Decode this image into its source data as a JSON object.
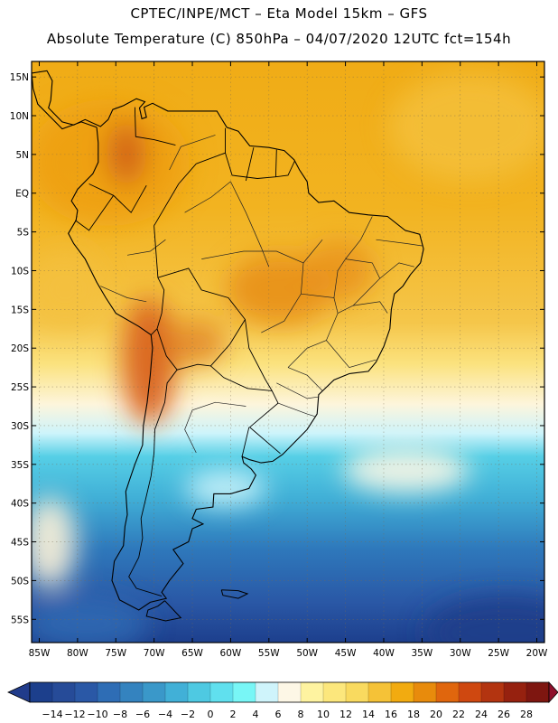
{
  "title": {
    "line1": "CPTEC/INPE/MCT –  Eta Model 15km – GFS",
    "line2": "Absolute Temperature (C) 850hPa – 04/07/2020 12UTC fct=154h"
  },
  "map": {
    "lon_range": [
      -86,
      -19
    ],
    "lat_range": [
      -58,
      17
    ],
    "lat_labels": [
      {
        "lat": 15,
        "text": "15N"
      },
      {
        "lat": 10,
        "text": "10N"
      },
      {
        "lat": 5,
        "text": "5N"
      },
      {
        "lat": 0,
        "text": "EQ"
      },
      {
        "lat": -5,
        "text": "5S"
      },
      {
        "lat": -10,
        "text": "10S"
      },
      {
        "lat": -15,
        "text": "15S"
      },
      {
        "lat": -20,
        "text": "20S"
      },
      {
        "lat": -25,
        "text": "25S"
      },
      {
        "lat": -30,
        "text": "30S"
      },
      {
        "lat": -35,
        "text": "35S"
      },
      {
        "lat": -40,
        "text": "40S"
      },
      {
        "lat": -45,
        "text": "45S"
      },
      {
        "lat": -50,
        "text": "50S"
      },
      {
        "lat": -55,
        "text": "55S"
      }
    ],
    "lon_labels": [
      {
        "lon": -85,
        "text": "85W"
      },
      {
        "lon": -80,
        "text": "80W"
      },
      {
        "lon": -75,
        "text": "75W"
      },
      {
        "lon": -70,
        "text": "70W"
      },
      {
        "lon": -65,
        "text": "65W"
      },
      {
        "lon": -60,
        "text": "60W"
      },
      {
        "lon": -55,
        "text": "55W"
      },
      {
        "lon": -50,
        "text": "50W"
      },
      {
        "lon": -45,
        "text": "45W"
      },
      {
        "lon": -40,
        "text": "40W"
      },
      {
        "lon": -35,
        "text": "35W"
      },
      {
        "lon": -30,
        "text": "30W"
      },
      {
        "lon": -25,
        "text": "25W"
      },
      {
        "lon": -20,
        "text": "20W"
      }
    ],
    "coastline": [
      [
        -77.5,
        8.5
      ],
      [
        -79.5,
        9.2
      ],
      [
        -82,
        8.3
      ],
      [
        -83.5,
        9.8
      ],
      [
        -85.2,
        11.5
      ],
      [
        -85.8,
        13.5
      ],
      [
        -86,
        15.5
      ],
      [
        -84,
        15.8
      ],
      [
        -83.3,
        14.5
      ],
      [
        -83.5,
        12
      ],
      [
        -83.8,
        11
      ],
      [
        -82,
        9.2
      ],
      [
        -80.5,
        8.8
      ],
      [
        -79,
        9.5
      ],
      [
        -77,
        8.6
      ],
      [
        -76,
        9.5
      ],
      [
        -75.4,
        10.8
      ],
      [
        -74,
        11.3
      ],
      [
        -72.3,
        12.2
      ],
      [
        -71.2,
        11.8
      ],
      [
        -71.9,
        11.0
      ],
      [
        -71.6,
        9.6
      ],
      [
        -71.0,
        9.8
      ],
      [
        -71.3,
        11.1
      ],
      [
        -70.2,
        11.6
      ],
      [
        -68.2,
        10.6
      ],
      [
        -66,
        10.6
      ],
      [
        -64,
        10.6
      ],
      [
        -61.8,
        10.6
      ],
      [
        -60.5,
        8.5
      ],
      [
        -59,
        8.0
      ],
      [
        -57.5,
        6.1
      ],
      [
        -55,
        5.9
      ],
      [
        -53,
        5.5
      ],
      [
        -51.7,
        4.3
      ],
      [
        -51,
        3
      ],
      [
        -50,
        1.5
      ],
      [
        -49.8,
        0
      ],
      [
        -48.5,
        -1.2
      ],
      [
        -46.5,
        -1.0
      ],
      [
        -44.5,
        -2.5
      ],
      [
        -42,
        -2.8
      ],
      [
        -39.5,
        -3.0
      ],
      [
        -37.2,
        -4.8
      ],
      [
        -35.3,
        -5.3
      ],
      [
        -34.8,
        -7.2
      ],
      [
        -35.2,
        -9.0
      ],
      [
        -36.5,
        -10.5
      ],
      [
        -37.5,
        -12.0
      ],
      [
        -38.6,
        -13.0
      ],
      [
        -39,
        -15
      ],
      [
        -39.2,
        -17.5
      ],
      [
        -40.0,
        -19.8
      ],
      [
        -41.0,
        -21.8
      ],
      [
        -42.0,
        -23.0
      ],
      [
        -44.5,
        -23.3
      ],
      [
        -46.5,
        -24.1
      ],
      [
        -48.5,
        -26.0
      ],
      [
        -48.7,
        -28.5
      ],
      [
        -50.0,
        -30.5
      ],
      [
        -51.5,
        -32.0
      ],
      [
        -53.2,
        -33.7
      ],
      [
        -54.5,
        -34.6
      ],
      [
        -56.0,
        -34.8
      ],
      [
        -57.5,
        -34.4
      ],
      [
        -58.5,
        -34.0
      ],
      [
        -58.3,
        -34.8
      ],
      [
        -57.3,
        -35.6
      ],
      [
        -56.7,
        -36.4
      ],
      [
        -57.6,
        -38.1
      ],
      [
        -60.0,
        -38.8
      ],
      [
        -62.2,
        -38.8
      ],
      [
        -62.3,
        -40.5
      ],
      [
        -64.5,
        -40.8
      ],
      [
        -65.0,
        -42.0
      ],
      [
        -63.6,
        -42.7
      ],
      [
        -65.0,
        -43.3
      ],
      [
        -65.5,
        -45.0
      ],
      [
        -67.5,
        -46.0
      ],
      [
        -66.2,
        -47.8
      ],
      [
        -68.0,
        -50.0
      ],
      [
        -69.0,
        -51.5
      ],
      [
        -68.4,
        -52.3
      ],
      [
        -70.5,
        -52.8
      ],
      [
        -72.0,
        -53.8
      ],
      [
        -74.5,
        -52.5
      ],
      [
        -75.5,
        -50.0
      ],
      [
        -75.2,
        -47.5
      ],
      [
        -74.0,
        -45.5
      ],
      [
        -73.8,
        -43.0
      ],
      [
        -73.5,
        -41.5
      ],
      [
        -73.7,
        -38.5
      ],
      [
        -73.2,
        -37.0
      ],
      [
        -72.5,
        -35.0
      ],
      [
        -71.5,
        -32.5
      ],
      [
        -71.4,
        -30.0
      ],
      [
        -70.9,
        -27.0
      ],
      [
        -70.5,
        -23.5
      ],
      [
        -70.2,
        -20.0
      ],
      [
        -70.4,
        -18.3
      ],
      [
        -72.0,
        -17.2
      ],
      [
        -75.0,
        -15.5
      ],
      [
        -76.3,
        -13.5
      ],
      [
        -77.5,
        -11.5
      ],
      [
        -79.0,
        -8.5
      ],
      [
        -80.5,
        -6.5
      ],
      [
        -81.2,
        -5.2
      ],
      [
        -80.2,
        -3.5
      ],
      [
        -80.0,
        -2.2
      ],
      [
        -80.8,
        -1.0
      ],
      [
        -80.0,
        0.5
      ],
      [
        -79.0,
        1.5
      ],
      [
        -78.0,
        2.5
      ],
      [
        -77.3,
        4.0
      ],
      [
        -77.3,
        6.5
      ],
      [
        -77.5,
        8.5
      ]
    ],
    "tierra_del_fuego": [
      [
        -68.6,
        -52.6
      ],
      [
        -66.5,
        -54.8
      ],
      [
        -68.5,
        -55.2
      ],
      [
        -71.0,
        -54.6
      ],
      [
        -70.8,
        -53.8
      ],
      [
        -69.5,
        -53.3
      ],
      [
        -68.6,
        -52.6
      ]
    ],
    "falklands": [
      [
        -61.2,
        -51.2
      ],
      [
        -59.0,
        -51.3
      ],
      [
        -57.8,
        -51.7
      ],
      [
        -59.0,
        -52.3
      ],
      [
        -61.0,
        -51.9
      ],
      [
        -61.2,
        -51.2
      ]
    ],
    "borders": [
      [
        [
          -71.0,
          1.0
        ],
        [
          -73.0,
          -2.5
        ],
        [
          -75.3,
          -0.3
        ],
        [
          -78.5,
          1.2
        ]
      ],
      [
        [
          -75.3,
          -0.3
        ],
        [
          -78.5,
          -4.8
        ],
        [
          -80.3,
          -3.5
        ]
      ],
      [
        [
          -67.2,
          6.2
        ],
        [
          -70.0,
          6.9
        ],
        [
          -72.4,
          7.3
        ],
        [
          -72.5,
          11.1
        ]
      ],
      [
        [
          -64.5,
          3.8
        ],
        [
          -66.8,
          1.2
        ],
        [
          -70.0,
          -4.2
        ],
        [
          -69.5,
          -10.9
        ],
        [
          -65.5,
          -9.7
        ],
        [
          -63.8,
          -12.5
        ],
        [
          -60.3,
          -13.5
        ],
        [
          -58.1,
          -16.3
        ],
        [
          -57.6,
          -20.0
        ],
        [
          -55.5,
          -24.0
        ],
        [
          -54.6,
          -25.5
        ],
        [
          -53.8,
          -27.1
        ],
        [
          -57.5,
          -30.2
        ],
        [
          -53.5,
          -33.6
        ]
      ],
      [
        [
          -60.7,
          5.2
        ],
        [
          -59.8,
          2.3
        ],
        [
          -56.5,
          1.9
        ],
        [
          -54.1,
          2.1
        ],
        [
          -52.5,
          2.3
        ],
        [
          -51.6,
          4.2
        ]
      ],
      [
        [
          -54.0,
          5.6
        ],
        [
          -54.1,
          2.1
        ]
      ],
      [
        [
          -57.0,
          5.9
        ],
        [
          -58.0,
          1.6
        ]
      ],
      [
        [
          -60.7,
          8.4
        ],
        [
          -60.7,
          5.2
        ],
        [
          -64.5,
          3.8
        ]
      ],
      [
        [
          -69.5,
          -10.9
        ],
        [
          -68.7,
          -12.5
        ],
        [
          -69.0,
          -15.5
        ],
        [
          -69.6,
          -17.5
        ],
        [
          -70.4,
          -18.3
        ]
      ],
      [
        [
          -69.6,
          -17.5
        ],
        [
          -68.4,
          -21.0
        ],
        [
          -67.0,
          -22.8
        ],
        [
          -64.3,
          -22.1
        ],
        [
          -62.6,
          -22.3
        ],
        [
          -60.1,
          -19.5
        ],
        [
          -58.1,
          -16.3
        ]
      ],
      [
        [
          -62.6,
          -22.3
        ],
        [
          -60.9,
          -23.8
        ],
        [
          -57.8,
          -25.2
        ],
        [
          -54.6,
          -25.5
        ]
      ],
      [
        [
          -67.0,
          -22.8
        ],
        [
          -68.3,
          -24.5
        ],
        [
          -68.6,
          -27.0
        ],
        [
          -69.9,
          -30.5
        ],
        [
          -70.0,
          -33.5
        ],
        [
          -70.4,
          -36.5
        ],
        [
          -71.1,
          -39.5
        ],
        [
          -71.7,
          -42.0
        ],
        [
          -71.5,
          -44.5
        ],
        [
          -72.0,
          -47.0
        ],
        [
          -73.3,
          -49.5
        ],
        [
          -72.3,
          -51.0
        ],
        [
          -69.0,
          -52.0
        ]
      ],
      [
        [
          -58.5,
          -34.0
        ],
        [
          -57.6,
          -30.2
        ]
      ]
    ],
    "state_borders": [
      [
        [
          -60.0,
          1.5
        ],
        [
          -58.0,
          -2.5
        ],
        [
          -56.0,
          -7.0
        ],
        [
          -55.0,
          -9.5
        ]
      ],
      [
        [
          -63.8,
          -8.5
        ],
        [
          -58.3,
          -7.5
        ],
        [
          -54.0,
          -7.5
        ],
        [
          -50.5,
          -9.0
        ],
        [
          -48.0,
          -6.0
        ]
      ],
      [
        [
          -50.5,
          -9.0
        ],
        [
          -50.8,
          -13.0
        ],
        [
          -53.0,
          -16.5
        ],
        [
          -56.0,
          -18.0
        ]
      ],
      [
        [
          -50.8,
          -13.0
        ],
        [
          -46.5,
          -13.5
        ],
        [
          -46.0,
          -10.0
        ],
        [
          -45.0,
          -8.5
        ],
        [
          -43.0,
          -6.0
        ],
        [
          -41.5,
          -3.0
        ]
      ],
      [
        [
          -46.5,
          -13.5
        ],
        [
          -46.0,
          -15.5
        ],
        [
          -47.5,
          -19.0
        ],
        [
          -50.0,
          -20.0
        ],
        [
          -52.5,
          -22.5
        ]
      ],
      [
        [
          -46.0,
          -15.5
        ],
        [
          -44.0,
          -14.5
        ],
        [
          -40.5,
          -14.0
        ],
        [
          -39.5,
          -15.5
        ]
      ],
      [
        [
          -40.5,
          -11.0
        ],
        [
          -38.0,
          -9.0
        ],
        [
          -36.0,
          -9.5
        ]
      ],
      [
        [
          -45.0,
          -8.5
        ],
        [
          -41.5,
          -9.0
        ],
        [
          -40.5,
          -11.0
        ],
        [
          -44.0,
          -14.5
        ]
      ],
      [
        [
          -41.0,
          -6.0
        ],
        [
          -37.0,
          -6.5
        ],
        [
          -35.0,
          -6.8
        ]
      ],
      [
        [
          -47.5,
          -19.0
        ],
        [
          -44.5,
          -22.5
        ],
        [
          -41.0,
          -21.5
        ]
      ],
      [
        [
          -52.5,
          -22.5
        ],
        [
          -50.0,
          -23.5
        ],
        [
          -48.0,
          -25.5
        ]
      ],
      [
        [
          -54.0,
          -24.5
        ],
        [
          -50.0,
          -26.5
        ],
        [
          -48.6,
          -26.3
        ]
      ],
      [
        [
          -53.8,
          -27.1
        ],
        [
          -50.0,
          -28.5
        ],
        [
          -49.0,
          -28.8
        ]
      ],
      [
        [
          -58.0,
          -27.5
        ],
        [
          -62.0,
          -27.0
        ],
        [
          -65.0,
          -28.0
        ],
        [
          -66.0,
          -30.5
        ],
        [
          -64.5,
          -33.5
        ]
      ],
      [
        [
          -73.5,
          -8.0
        ],
        [
          -70.5,
          -7.5
        ],
        [
          -68.5,
          -6.0
        ]
      ],
      [
        [
          -77.0,
          -12.0
        ],
        [
          -73.5,
          -13.5
        ],
        [
          -71.0,
          -14.0
        ]
      ],
      [
        [
          -60.0,
          1.5
        ],
        [
          -62.5,
          -0.5
        ],
        [
          -66.0,
          -2.5
        ]
      ],
      [
        [
          -68.0,
          3.0
        ],
        [
          -66.5,
          6.0
        ],
        [
          -62.0,
          7.5
        ]
      ]
    ]
  },
  "colorbar": {
    "labels": [
      "-14",
      "-12",
      "-10",
      "-8",
      "-6",
      "-4",
      "-2",
      "0",
      "2",
      "4",
      "6",
      "8",
      "10",
      "12",
      "14",
      "16",
      "18",
      "20",
      "22",
      "24",
      "26",
      "28"
    ],
    "colors": [
      "#1c3f8c",
      "#264b98",
      "#2a58a6",
      "#2e6db5",
      "#3483bf",
      "#3a98c9",
      "#41b0d7",
      "#4ec9e2",
      "#60e0ee",
      "#78f6f6",
      "#cff4fb",
      "#fdf7e6",
      "#fef3a0",
      "#fce77c",
      "#f9da5f",
      "#f5c237",
      "#f2ab10",
      "#e88b0c",
      "#e0660d",
      "#cf4810",
      "#b33410",
      "#96210f",
      "#7e1610"
    ],
    "under_color": "#213c8b",
    "over_color": "#8f0f2c"
  }
}
